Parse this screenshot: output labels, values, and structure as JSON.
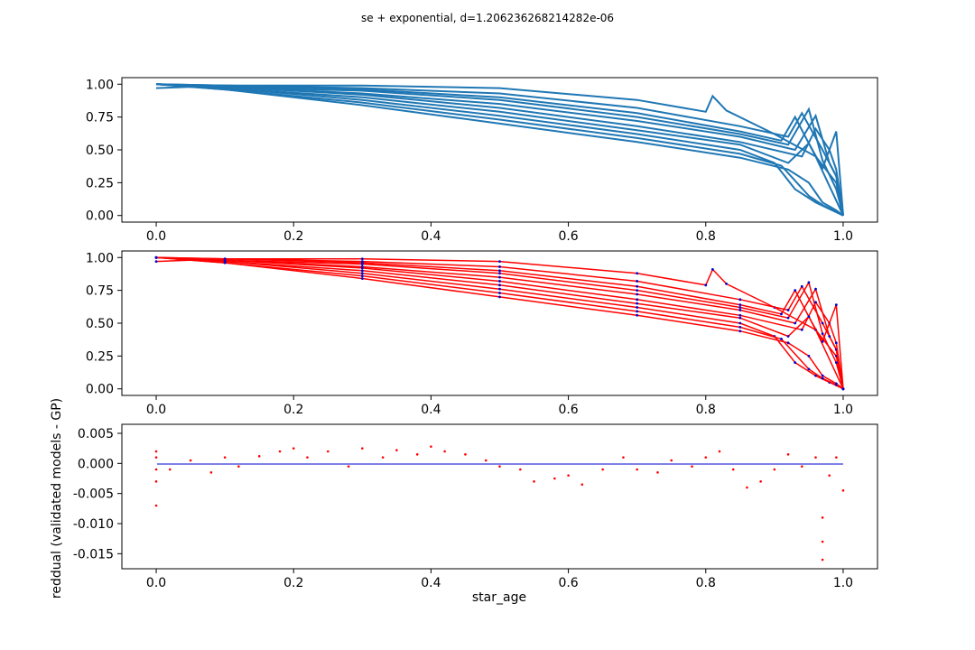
{
  "figure": {
    "title": "se + exponential, d=1.206236268214282e-06"
  },
  "colors": {
    "models": "#1f77b4",
    "validated": "#ff0000",
    "gp": "#0000cc"
  },
  "chart_data": [
    {
      "type": "line",
      "panel": "top",
      "xlabel": "",
      "ylabel": "",
      "xlim": [
        -0.05,
        1.05
      ],
      "ylim": [
        -0.05,
        1.05
      ],
      "xticks": [
        "0.0",
        "0.2",
        "0.4",
        "0.6",
        "0.8",
        "1.0"
      ],
      "yticks": [
        "0.00",
        "0.25",
        "0.50",
        "0.75",
        "1.00"
      ],
      "series": [
        {
          "x": [
            0,
            0.1,
            0.3,
            0.5,
            0.7,
            0.8,
            0.81,
            0.83,
            0.9,
            0.96,
            1.0
          ],
          "y": [
            0.97,
            0.99,
            0.99,
            0.97,
            0.88,
            0.79,
            0.91,
            0.8,
            0.62,
            0.45,
            0.0
          ]
        },
        {
          "x": [
            0,
            0.1,
            0.3,
            0.5,
            0.7,
            0.85,
            0.92,
            0.94,
            0.97,
            0.99,
            1.0
          ],
          "y": [
            1.0,
            0.99,
            0.97,
            0.93,
            0.82,
            0.68,
            0.6,
            0.78,
            0.5,
            0.3,
            0.0
          ]
        },
        {
          "x": [
            0,
            0.1,
            0.3,
            0.5,
            0.7,
            0.85,
            0.91,
            0.93,
            0.96,
            0.99,
            1.0
          ],
          "y": [
            1.0,
            0.99,
            0.96,
            0.9,
            0.78,
            0.64,
            0.57,
            0.75,
            0.45,
            0.25,
            0.0
          ]
        },
        {
          "x": [
            0,
            0.1,
            0.3,
            0.5,
            0.7,
            0.85,
            0.92,
            0.95,
            0.97,
            0.99,
            1.0
          ],
          "y": [
            1.0,
            0.98,
            0.95,
            0.88,
            0.75,
            0.62,
            0.54,
            0.81,
            0.42,
            0.2,
            0.0
          ]
        },
        {
          "x": [
            0,
            0.1,
            0.3,
            0.5,
            0.7,
            0.85,
            0.93,
            0.96,
            0.98,
            0.99,
            1.0
          ],
          "y": [
            1.0,
            0.98,
            0.93,
            0.85,
            0.72,
            0.6,
            0.5,
            0.76,
            0.4,
            0.3,
            0.0
          ]
        },
        {
          "x": [
            0,
            0.1,
            0.3,
            0.5,
            0.7,
            0.85,
            0.94,
            0.96,
            0.98,
            0.99,
            1.0
          ],
          "y": [
            1.0,
            0.98,
            0.92,
            0.82,
            0.68,
            0.56,
            0.45,
            0.66,
            0.5,
            0.35,
            0.0
          ]
        },
        {
          "x": [
            0,
            0.1,
            0.3,
            0.5,
            0.7,
            0.85,
            0.92,
            0.95,
            0.97,
            0.99,
            1.0
          ],
          "y": [
            1.0,
            0.97,
            0.9,
            0.79,
            0.65,
            0.54,
            0.4,
            0.55,
            0.36,
            0.64,
            0.0
          ]
        },
        {
          "x": [
            0,
            0.1,
            0.3,
            0.5,
            0.7,
            0.85,
            0.9,
            0.93,
            0.96,
            0.98,
            1.0
          ],
          "y": [
            1.0,
            0.97,
            0.88,
            0.76,
            0.62,
            0.5,
            0.4,
            0.2,
            0.1,
            0.05,
            0.0
          ]
        },
        {
          "x": [
            0,
            0.1,
            0.3,
            0.5,
            0.7,
            0.85,
            0.91,
            0.95,
            0.97,
            0.99,
            1.0
          ],
          "y": [
            1.0,
            0.96,
            0.86,
            0.73,
            0.59,
            0.47,
            0.38,
            0.15,
            0.08,
            0.03,
            0.0
          ]
        },
        {
          "x": [
            0,
            0.1,
            0.3,
            0.5,
            0.7,
            0.85,
            0.92,
            0.95,
            0.97,
            0.99,
            1.0
          ],
          "y": [
            1.0,
            0.96,
            0.84,
            0.7,
            0.56,
            0.44,
            0.35,
            0.25,
            0.1,
            0.04,
            0.0
          ]
        }
      ]
    },
    {
      "type": "line",
      "panel": "middle",
      "xlabel": "",
      "ylabel": "",
      "xlim": [
        -0.05,
        1.05
      ],
      "ylim": [
        -0.05,
        1.05
      ],
      "xticks": [
        "0.0",
        "0.2",
        "0.4",
        "0.6",
        "0.8",
        "1.0"
      ],
      "yticks": [
        "0.00",
        "0.25",
        "0.50",
        "0.75",
        "1.00"
      ],
      "note_series": "same curves as top panel drawn in red with purple GP points"
    },
    {
      "type": "scatter",
      "panel": "bottom",
      "xlabel": "star_age",
      "ylabel": "reddual (validated models - GP)",
      "xlim": [
        -0.05,
        1.05
      ],
      "ylim": [
        -0.0175,
        0.0065
      ],
      "xticks": [
        "0.0",
        "0.2",
        "0.4",
        "0.6",
        "0.8",
        "1.0"
      ],
      "yticks": [
        "0.005",
        "0.000",
        "-0.005",
        "-0.010",
        "-0.015"
      ],
      "series": [
        {
          "name": "",
          "x": [
            0.0,
            0.0,
            0.0,
            0.0,
            0.0,
            0.02,
            0.05,
            0.08,
            0.1,
            0.12,
            0.15,
            0.18,
            0.2,
            0.22,
            0.25,
            0.28,
            0.3,
            0.33,
            0.35,
            0.38,
            0.4,
            0.42,
            0.45,
            0.48,
            0.5,
            0.53,
            0.55,
            0.58,
            0.6,
            0.62,
            0.65,
            0.68,
            0.7,
            0.73,
            0.75,
            0.78,
            0.8,
            0.82,
            0.84,
            0.86,
            0.88,
            0.9,
            0.92,
            0.94,
            0.96,
            0.97,
            0.97,
            0.97,
            0.98,
            0.99,
            1.0
          ],
          "y": [
            0.002,
            -0.003,
            -0.007,
            0.001,
            -0.001,
            -0.001,
            0.0005,
            -0.0015,
            0.001,
            -0.0005,
            0.0012,
            0.002,
            0.0025,
            0.001,
            0.002,
            -0.0005,
            0.0025,
            0.001,
            0.0022,
            0.0015,
            0.0028,
            0.002,
            0.0015,
            0.0005,
            -0.0005,
            -0.001,
            -0.003,
            -0.0025,
            -0.002,
            -0.0035,
            -0.001,
            0.001,
            -0.001,
            -0.0015,
            0.0005,
            -0.0005,
            0.001,
            0.002,
            -0.001,
            -0.004,
            -0.003,
            -0.001,
            0.0015,
            -0.0005,
            0.001,
            -0.016,
            -0.013,
            -0.009,
            -0.002,
            0.001,
            -0.0045
          ]
        }
      ]
    }
  ]
}
